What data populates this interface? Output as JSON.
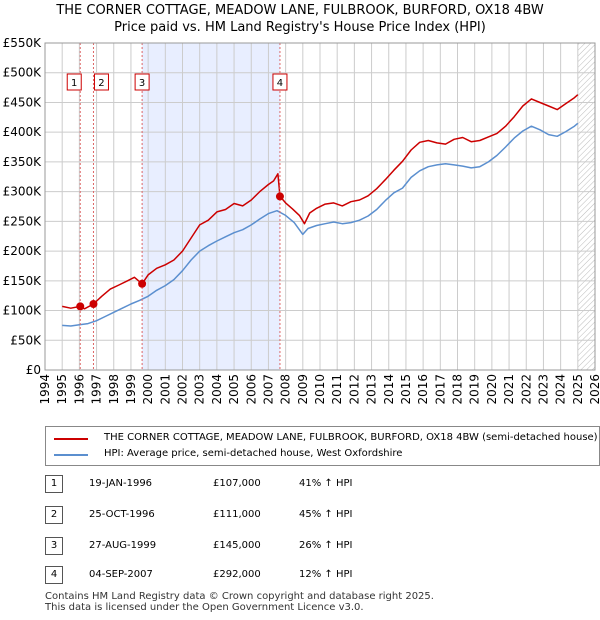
{
  "title_line1": "THE CORNER COTTAGE, MEADOW LANE, FULBROOK, BURFORD, OX18 4BW",
  "title_line2": "Price paid vs. HM Land Registry's House Price Index (HPI)",
  "colors": {
    "property": "#cc0000",
    "hpi": "#5b8fcf",
    "shade": "#e8eeff",
    "grid": "#cccccc",
    "marker_line": "#dd6666"
  },
  "chart_data": {
    "type": "line",
    "title": "Price paid vs. HM Land Registry's House Price Index (HPI)",
    "xlim": [
      1994,
      2026
    ],
    "ylim": [
      0,
      550000
    ],
    "x_ticks": [
      1994,
      1995,
      1996,
      1997,
      1998,
      1999,
      2000,
      2001,
      2002,
      2003,
      2004,
      2005,
      2006,
      2007,
      2008,
      2009,
      2010,
      2011,
      2012,
      2013,
      2014,
      2015,
      2016,
      2017,
      2018,
      2019,
      2020,
      2021,
      2022,
      2023,
      2024,
      2025,
      2026
    ],
    "y_ticks": [
      0,
      50000,
      100000,
      150000,
      200000,
      250000,
      300000,
      350000,
      400000,
      450000,
      500000,
      550000
    ],
    "y_tick_labels": [
      "£0",
      "£50K",
      "£100K",
      "£150K",
      "£200K",
      "£250K",
      "£300K",
      "£350K",
      "£400K",
      "£450K",
      "£500K",
      "£550K"
    ],
    "shaded_period": [
      1999.65,
      2007.67
    ],
    "hatched_after": 2025.0,
    "series": [
      {
        "name": "THE CORNER COTTAGE, MEADOW LANE, FULBROOK, BURFORD, OX18 4BW (semi-detached house)",
        "key": "property",
        "x": [
          1995.0,
          1995.5,
          1996.05,
          1996.3,
          1996.82,
          1997.3,
          1997.8,
          1998.3,
          1998.8,
          1999.2,
          1999.65,
          2000.0,
          2000.5,
          2001.0,
          2001.5,
          2002.0,
          2002.5,
          2003.0,
          2003.5,
          2004.0,
          2004.5,
          2005.0,
          2005.5,
          2006.0,
          2006.5,
          2007.0,
          2007.3,
          2007.55,
          2007.67,
          2008.0,
          2008.4,
          2008.8,
          2009.1,
          2009.4,
          2009.8,
          2010.3,
          2010.8,
          2011.3,
          2011.8,
          2012.3,
          2012.8,
          2013.3,
          2013.8,
          2014.3,
          2014.8,
          2015.3,
          2015.8,
          2016.3,
          2016.8,
          2017.3,
          2017.8,
          2018.3,
          2018.8,
          2019.3,
          2019.8,
          2020.3,
          2020.8,
          2021.3,
          2021.8,
          2022.3,
          2022.8,
          2023.3,
          2023.8,
          2024.3,
          2024.8,
          2025.0
        ],
        "values": [
          107000,
          104000,
          107000,
          103000,
          111000,
          124000,
          136000,
          143000,
          150000,
          156000,
          145000,
          160000,
          171000,
          177000,
          185000,
          200000,
          222000,
          244000,
          252000,
          266000,
          270000,
          280000,
          276000,
          286000,
          300000,
          312000,
          318000,
          330000,
          292000,
          281000,
          271000,
          260000,
          246000,
          264000,
          272000,
          279000,
          281000,
          276000,
          283000,
          286000,
          293000,
          305000,
          320000,
          336000,
          351000,
          370000,
          383000,
          386000,
          382000,
          380000,
          388000,
          391000,
          384000,
          386000,
          392000,
          398000,
          410000,
          426000,
          444000,
          456000,
          450000,
          444000,
          438000,
          448000,
          458000,
          463000
        ]
      },
      {
        "name": "HPI: Average price, semi-detached house, West Oxfordshire",
        "key": "hpi",
        "x": [
          1995.0,
          1995.5,
          1996.0,
          1996.5,
          1997.0,
          1997.5,
          1998.0,
          1998.5,
          1999.0,
          1999.5,
          2000.0,
          2000.5,
          2001.0,
          2001.5,
          2002.0,
          2002.5,
          2003.0,
          2003.5,
          2004.0,
          2004.5,
          2005.0,
          2005.5,
          2006.0,
          2006.5,
          2007.0,
          2007.5,
          2008.0,
          2008.5,
          2009.0,
          2009.3,
          2009.8,
          2010.3,
          2010.8,
          2011.3,
          2011.8,
          2012.3,
          2012.8,
          2013.3,
          2013.8,
          2014.3,
          2014.8,
          2015.3,
          2015.8,
          2016.3,
          2016.8,
          2017.3,
          2017.8,
          2018.3,
          2018.8,
          2019.3,
          2019.8,
          2020.3,
          2020.8,
          2021.3,
          2021.8,
          2022.3,
          2022.8,
          2023.3,
          2023.8,
          2024.3,
          2024.8,
          2025.0
        ],
        "values": [
          75000,
          74000,
          76000,
          78000,
          83000,
          90000,
          97000,
          104000,
          111000,
          117000,
          124000,
          134000,
          142000,
          152000,
          167000,
          185000,
          200000,
          209000,
          217000,
          224000,
          231000,
          236000,
          244000,
          254000,
          263000,
          268000,
          260000,
          248000,
          228000,
          238000,
          243000,
          246000,
          249000,
          246000,
          248000,
          252000,
          259000,
          270000,
          285000,
          298000,
          306000,
          324000,
          335000,
          342000,
          345000,
          347000,
          345000,
          343000,
          340000,
          342000,
          350000,
          361000,
          375000,
          390000,
          402000,
          410000,
          404000,
          396000,
          393000,
          401000,
          410000,
          415000
        ]
      }
    ],
    "sales": [
      {
        "num": "1",
        "x": 1996.05,
        "price": 107000
      },
      {
        "num": "2",
        "x": 1996.82,
        "price": 111000
      },
      {
        "num": "3",
        "x": 1999.65,
        "price": 145000
      },
      {
        "num": "4",
        "x": 2007.67,
        "price": 292000
      }
    ]
  },
  "legend": {
    "property_label": "THE CORNER COTTAGE, MEADOW LANE, FULBROOK, BURFORD, OX18 4BW (semi-detached house)",
    "hpi_label": "HPI: Average price, semi-detached house, West Oxfordshire"
  },
  "transactions": [
    {
      "num": "1",
      "date": "19-JAN-1996",
      "price": "£107,000",
      "hpi": "41% ↑ HPI"
    },
    {
      "num": "2",
      "date": "25-OCT-1996",
      "price": "£111,000",
      "hpi": "45% ↑ HPI"
    },
    {
      "num": "3",
      "date": "27-AUG-1999",
      "price": "£145,000",
      "hpi": "26% ↑ HPI"
    },
    {
      "num": "4",
      "date": "04-SEP-2007",
      "price": "£292,000",
      "hpi": "12% ↑ HPI"
    }
  ],
  "footer": {
    "line1": "Contains HM Land Registry data © Crown copyright and database right 2025.",
    "line2": "This data is licensed under the Open Government Licence v3.0."
  }
}
